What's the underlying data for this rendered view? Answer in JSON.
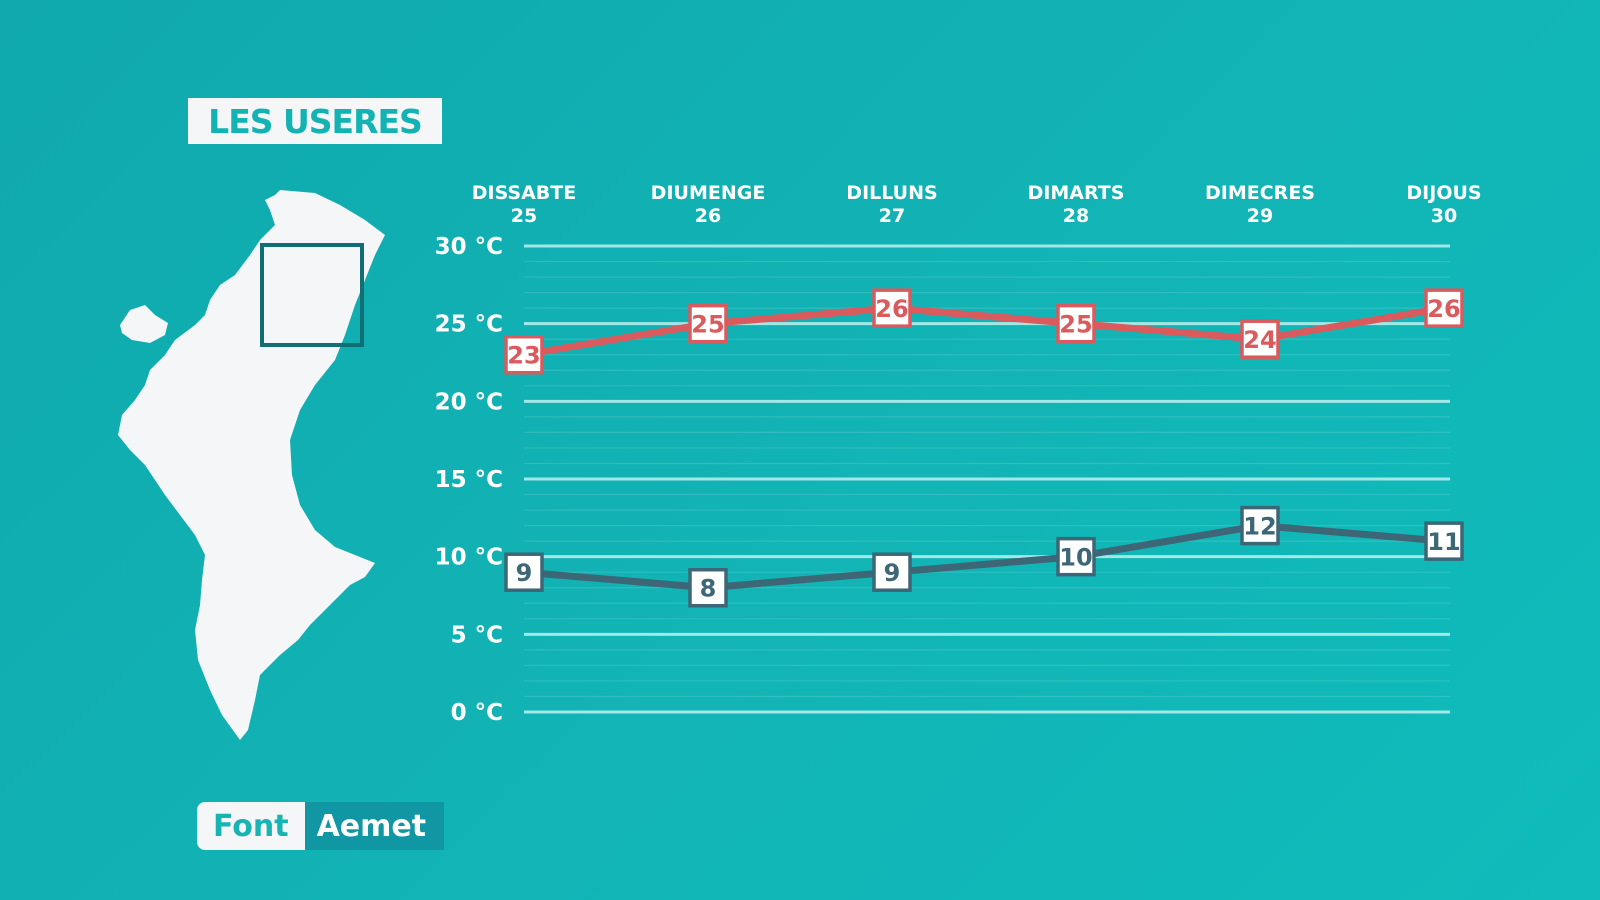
{
  "location_title": "LES USERES",
  "source": {
    "label": "Font",
    "value": "Aemet"
  },
  "colors": {
    "background": "#12b3b5",
    "max_series": "#d95b5e",
    "min_series": "#3d6777",
    "map_fill": "#f4f6f7",
    "highlight_box": "#0f6f73"
  },
  "chart_data": {
    "type": "line",
    "categories": [
      {
        "day": "DISSABTE",
        "date": "25"
      },
      {
        "day": "DIUMENGE",
        "date": "26"
      },
      {
        "day": "DILLUNS",
        "date": "27"
      },
      {
        "day": "DIMARTS",
        "date": "28"
      },
      {
        "day": "DIMECRES",
        "date": "29"
      },
      {
        "day": "DIJOUS",
        "date": "30"
      }
    ],
    "series": [
      {
        "key": "max",
        "values": [
          23,
          25,
          26,
          25,
          24,
          26
        ]
      },
      {
        "key": "min",
        "values": [
          9,
          8,
          9,
          10,
          12,
          11
        ]
      }
    ],
    "ylim": [
      0,
      30
    ],
    "yticks": [
      {
        "value": 30,
        "label": "30 °C"
      },
      {
        "value": 25,
        "label": "25 °C"
      },
      {
        "value": 20,
        "label": "20 °C"
      },
      {
        "value": 15,
        "label": "15 °C"
      },
      {
        "value": 10,
        "label": "10 °C"
      },
      {
        "value": 5,
        "label": "5 °C"
      },
      {
        "value": 0,
        "label": "0 °C"
      }
    ],
    "grid": true,
    "title": "",
    "xlabel": "",
    "ylabel": ""
  }
}
